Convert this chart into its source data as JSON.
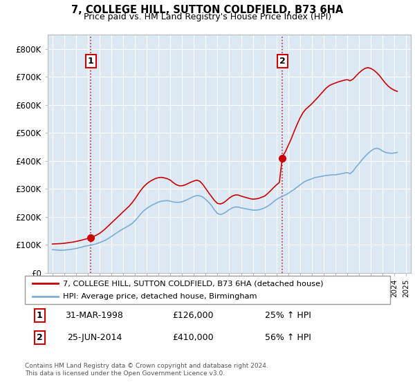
{
  "title": "7, COLLEGE HILL, SUTTON COLDFIELD, B73 6HA",
  "subtitle": "Price paid vs. HM Land Registry's House Price Index (HPI)",
  "background_color": "#ffffff",
  "plot_bg_color": "#dce9f5",
  "hpi_color": "#7aadd4",
  "price_color": "#cc0000",
  "ylim": [
    0,
    850000
  ],
  "yticks": [
    0,
    100000,
    200000,
    300000,
    400000,
    500000,
    600000,
    700000,
    800000
  ],
  "ytick_labels": [
    "£0",
    "£100K",
    "£200K",
    "£300K",
    "£400K",
    "£500K",
    "£600K",
    "£700K",
    "£800K"
  ],
  "purchase1_date": 1998.25,
  "purchase1_price": 126000,
  "purchase2_date": 2014.49,
  "purchase2_price": 410000,
  "legend_line1": "7, COLLEGE HILL, SUTTON COLDFIELD, B73 6HA (detached house)",
  "legend_line2": "HPI: Average price, detached house, Birmingham",
  "note1_date": "31-MAR-1998",
  "note1_price": "£126,000",
  "note1_hpi": "25% ↑ HPI",
  "note2_date": "25-JUN-2014",
  "note2_price": "£410,000",
  "note2_hpi": "56% ↑ HPI",
  "footer": "Contains HM Land Registry data © Crown copyright and database right 2024.\nThis data is licensed under the Open Government Licence v3.0.",
  "hpi_data": [
    [
      1995.0,
      83000
    ],
    [
      1995.25,
      82000
    ],
    [
      1995.5,
      81000
    ],
    [
      1995.75,
      80500
    ],
    [
      1996.0,
      81000
    ],
    [
      1996.25,
      82500
    ],
    [
      1996.5,
      83500
    ],
    [
      1996.75,
      85000
    ],
    [
      1997.0,
      87000
    ],
    [
      1997.25,
      89500
    ],
    [
      1997.5,
      92000
    ],
    [
      1997.75,
      95000
    ],
    [
      1998.0,
      97000
    ],
    [
      1998.25,
      99000
    ],
    [
      1998.5,
      101000
    ],
    [
      1998.75,
      104000
    ],
    [
      1999.0,
      108000
    ],
    [
      1999.25,
      112000
    ],
    [
      1999.5,
      117000
    ],
    [
      1999.75,
      123000
    ],
    [
      2000.0,
      130000
    ],
    [
      2000.25,
      137000
    ],
    [
      2000.5,
      144000
    ],
    [
      2000.75,
      151000
    ],
    [
      2001.0,
      157000
    ],
    [
      2001.25,
      163000
    ],
    [
      2001.5,
      169000
    ],
    [
      2001.75,
      176000
    ],
    [
      2002.0,
      186000
    ],
    [
      2002.25,
      198000
    ],
    [
      2002.5,
      211000
    ],
    [
      2002.75,
      222000
    ],
    [
      2003.0,
      230000
    ],
    [
      2003.25,
      237000
    ],
    [
      2003.5,
      243000
    ],
    [
      2003.75,
      248000
    ],
    [
      2004.0,
      253000
    ],
    [
      2004.25,
      256000
    ],
    [
      2004.5,
      257000
    ],
    [
      2004.75,
      258000
    ],
    [
      2005.0,
      256000
    ],
    [
      2005.25,
      253000
    ],
    [
      2005.5,
      252000
    ],
    [
      2005.75,
      252000
    ],
    [
      2006.0,
      254000
    ],
    [
      2006.25,
      258000
    ],
    [
      2006.5,
      263000
    ],
    [
      2006.75,
      268000
    ],
    [
      2007.0,
      273000
    ],
    [
      2007.25,
      276000
    ],
    [
      2007.5,
      275000
    ],
    [
      2007.75,
      271000
    ],
    [
      2008.0,
      262000
    ],
    [
      2008.25,
      252000
    ],
    [
      2008.5,
      240000
    ],
    [
      2008.75,
      224000
    ],
    [
      2009.0,
      212000
    ],
    [
      2009.25,
      208000
    ],
    [
      2009.5,
      212000
    ],
    [
      2009.75,
      218000
    ],
    [
      2010.0,
      226000
    ],
    [
      2010.25,
      232000
    ],
    [
      2010.5,
      235000
    ],
    [
      2010.75,
      235000
    ],
    [
      2011.0,
      232000
    ],
    [
      2011.25,
      230000
    ],
    [
      2011.5,
      228000
    ],
    [
      2011.75,
      226000
    ],
    [
      2012.0,
      224000
    ],
    [
      2012.25,
      224000
    ],
    [
      2012.5,
      225000
    ],
    [
      2012.75,
      228000
    ],
    [
      2013.0,
      232000
    ],
    [
      2013.25,
      238000
    ],
    [
      2013.5,
      245000
    ],
    [
      2013.75,
      254000
    ],
    [
      2014.0,
      262000
    ],
    [
      2014.25,
      268000
    ],
    [
      2014.5,
      273000
    ],
    [
      2014.75,
      278000
    ],
    [
      2015.0,
      284000
    ],
    [
      2015.25,
      291000
    ],
    [
      2015.5,
      298000
    ],
    [
      2015.75,
      306000
    ],
    [
      2016.0,
      314000
    ],
    [
      2016.25,
      322000
    ],
    [
      2016.5,
      328000
    ],
    [
      2016.75,
      332000
    ],
    [
      2017.0,
      336000
    ],
    [
      2017.25,
      340000
    ],
    [
      2017.5,
      342000
    ],
    [
      2017.75,
      344000
    ],
    [
      2018.0,
      346000
    ],
    [
      2018.25,
      348000
    ],
    [
      2018.5,
      349000
    ],
    [
      2018.75,
      350000
    ],
    [
      2019.0,
      350000
    ],
    [
      2019.25,
      352000
    ],
    [
      2019.5,
      354000
    ],
    [
      2019.75,
      356000
    ],
    [
      2020.0,
      358000
    ],
    [
      2020.25,
      354000
    ],
    [
      2020.5,
      363000
    ],
    [
      2020.75,
      378000
    ],
    [
      2021.0,
      390000
    ],
    [
      2021.25,
      403000
    ],
    [
      2021.5,
      415000
    ],
    [
      2021.75,
      426000
    ],
    [
      2022.0,
      435000
    ],
    [
      2022.25,
      442000
    ],
    [
      2022.5,
      445000
    ],
    [
      2022.75,
      442000
    ],
    [
      2023.0,
      435000
    ],
    [
      2023.25,
      430000
    ],
    [
      2023.5,
      428000
    ],
    [
      2023.75,
      427000
    ],
    [
      2024.0,
      428000
    ],
    [
      2024.25,
      430000
    ]
  ],
  "price_data": [
    [
      1995.0,
      103000
    ],
    [
      1995.25,
      103500
    ],
    [
      1995.5,
      104000
    ],
    [
      1995.75,
      104500
    ],
    [
      1996.0,
      105500
    ],
    [
      1996.25,
      107000
    ],
    [
      1996.5,
      108500
    ],
    [
      1996.75,
      110000
    ],
    [
      1997.0,
      112000
    ],
    [
      1997.25,
      114500
    ],
    [
      1997.5,
      117000
    ],
    [
      1997.75,
      120000
    ],
    [
      1998.0,
      122500
    ],
    [
      1998.25,
      126000
    ],
    [
      1998.5,
      130000
    ],
    [
      1998.75,
      135000
    ],
    [
      1999.0,
      141000
    ],
    [
      1999.25,
      149000
    ],
    [
      1999.5,
      158000
    ],
    [
      1999.75,
      168000
    ],
    [
      2000.0,
      178000
    ],
    [
      2000.25,
      188000
    ],
    [
      2000.5,
      198000
    ],
    [
      2000.75,
      208000
    ],
    [
      2001.0,
      218000
    ],
    [
      2001.25,
      228000
    ],
    [
      2001.5,
      238000
    ],
    [
      2001.75,
      250000
    ],
    [
      2002.0,
      264000
    ],
    [
      2002.25,
      280000
    ],
    [
      2002.5,
      295000
    ],
    [
      2002.75,
      308000
    ],
    [
      2003.0,
      318000
    ],
    [
      2003.25,
      326000
    ],
    [
      2003.5,
      332000
    ],
    [
      2003.75,
      337000
    ],
    [
      2004.0,
      340000
    ],
    [
      2004.25,
      341000
    ],
    [
      2004.5,
      339000
    ],
    [
      2004.75,
      336000
    ],
    [
      2005.0,
      331000
    ],
    [
      2005.25,
      322000
    ],
    [
      2005.5,
      315000
    ],
    [
      2005.75,
      311000
    ],
    [
      2006.0,
      311000
    ],
    [
      2006.25,
      314000
    ],
    [
      2006.5,
      319000
    ],
    [
      2006.75,
      324000
    ],
    [
      2007.0,
      328000
    ],
    [
      2007.25,
      331000
    ],
    [
      2007.5,
      327000
    ],
    [
      2007.75,
      316000
    ],
    [
      2008.0,
      301000
    ],
    [
      2008.25,
      286000
    ],
    [
      2008.5,
      272000
    ],
    [
      2008.75,
      258000
    ],
    [
      2009.0,
      248000
    ],
    [
      2009.25,
      246000
    ],
    [
      2009.5,
      250000
    ],
    [
      2009.75,
      258000
    ],
    [
      2010.0,
      267000
    ],
    [
      2010.25,
      274000
    ],
    [
      2010.5,
      278000
    ],
    [
      2010.75,
      278000
    ],
    [
      2011.0,
      274000
    ],
    [
      2011.25,
      271000
    ],
    [
      2011.5,
      268000
    ],
    [
      2011.75,
      265000
    ],
    [
      2012.0,
      263000
    ],
    [
      2012.25,
      264000
    ],
    [
      2012.5,
      266000
    ],
    [
      2012.75,
      270000
    ],
    [
      2013.0,
      274000
    ],
    [
      2013.25,
      283000
    ],
    [
      2013.5,
      293000
    ],
    [
      2013.75,
      304000
    ],
    [
      2014.0,
      314000
    ],
    [
      2014.25,
      323000
    ],
    [
      2014.49,
      410000
    ],
    [
      2014.5,
      415000
    ],
    [
      2014.75,
      432000
    ],
    [
      2015.0,
      455000
    ],
    [
      2015.25,
      478000
    ],
    [
      2015.5,
      505000
    ],
    [
      2015.75,
      530000
    ],
    [
      2016.0,
      553000
    ],
    [
      2016.25,
      572000
    ],
    [
      2016.5,
      585000
    ],
    [
      2016.75,
      594000
    ],
    [
      2017.0,
      604000
    ],
    [
      2017.25,
      615000
    ],
    [
      2017.5,
      626000
    ],
    [
      2017.75,
      638000
    ],
    [
      2018.0,
      650000
    ],
    [
      2018.25,
      661000
    ],
    [
      2018.5,
      669000
    ],
    [
      2018.75,
      674000
    ],
    [
      2019.0,
      678000
    ],
    [
      2019.25,
      682000
    ],
    [
      2019.5,
      685000
    ],
    [
      2019.75,
      688000
    ],
    [
      2020.0,
      690000
    ],
    [
      2020.25,
      686000
    ],
    [
      2020.5,
      692000
    ],
    [
      2020.75,
      703000
    ],
    [
      2021.0,
      714000
    ],
    [
      2021.25,
      723000
    ],
    [
      2021.5,
      730000
    ],
    [
      2021.75,
      733000
    ],
    [
      2022.0,
      730000
    ],
    [
      2022.25,
      724000
    ],
    [
      2022.5,
      715000
    ],
    [
      2022.75,
      704000
    ],
    [
      2023.0,
      690000
    ],
    [
      2023.25,
      677000
    ],
    [
      2023.5,
      666000
    ],
    [
      2023.75,
      658000
    ],
    [
      2024.0,
      652000
    ],
    [
      2024.25,
      648000
    ]
  ]
}
